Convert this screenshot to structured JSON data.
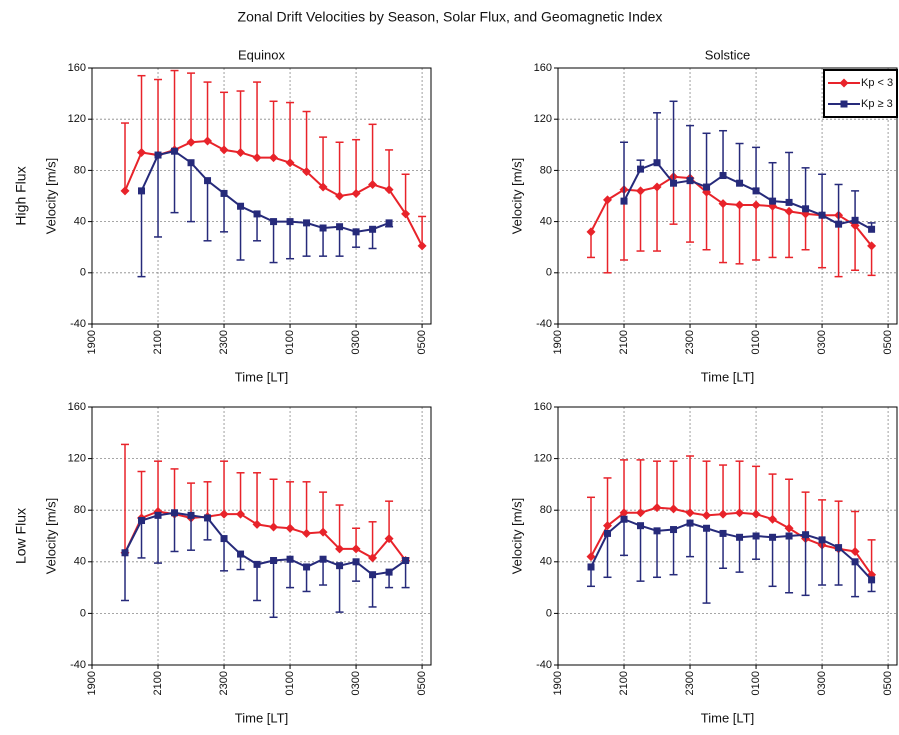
{
  "title": "Zonal Drift Velocities by Season, Solar Flux, and Geomagnetic Index",
  "row_labels": [
    "High Flux",
    "Low Flux"
  ],
  "chart_data": [
    {
      "type": "line",
      "title": "Equinox",
      "xlabel": "Time [LT]",
      "ylabel": "Velocity [m/s]",
      "xlim": [
        19,
        29.27
      ],
      "ylim": [
        -40,
        160
      ],
      "xticks": [
        {
          "value": 19,
          "label": "1900"
        },
        {
          "value": 21,
          "label": "2100"
        },
        {
          "value": 23,
          "label": "2300"
        },
        {
          "value": 25,
          "label": "0100"
        },
        {
          "value": 27,
          "label": "0300"
        },
        {
          "value": 29,
          "label": "0500"
        }
      ],
      "yticks": [
        -40,
        0,
        40,
        80,
        120,
        160
      ],
      "grid": true,
      "series": [
        {
          "color": "#e8232a",
          "marker": "diamond",
          "error_direction": "up",
          "x": [
            20,
            20.5,
            21,
            21.5,
            22,
            22.5,
            23,
            23.5,
            24,
            24.5,
            25,
            25.5,
            26,
            26.5,
            27,
            27.5,
            28,
            28.5,
            29
          ],
          "values": [
            64,
            94,
            92,
            96,
            102,
            103,
            96,
            94,
            90,
            90,
            86,
            79,
            67,
            60,
            62,
            69,
            65,
            46,
            21
          ],
          "errors": [
            53,
            60,
            59,
            62,
            54,
            46,
            45,
            48,
            59,
            44,
            47,
            47,
            39,
            42,
            42,
            47,
            31,
            31,
            23
          ]
        },
        {
          "color": "#262a7a",
          "marker": "square",
          "error_direction": "down",
          "x": [
            20.5,
            21,
            21.5,
            22,
            22.5,
            23,
            23.5,
            24,
            24.5,
            25,
            25.5,
            26,
            26.5,
            27,
            27.5,
            28
          ],
          "values": [
            64,
            92,
            95,
            86,
            72,
            62,
            52,
            46,
            40,
            40,
            39,
            35,
            36,
            32,
            34,
            39
          ],
          "errors": [
            67,
            64,
            48,
            46,
            47,
            30,
            42,
            21,
            32,
            29,
            26,
            22,
            23,
            12,
            15,
            3
          ]
        }
      ]
    },
    {
      "type": "line",
      "title": "Solstice",
      "xlabel": "Time [LT]",
      "ylabel": "Velocity [m/s]",
      "xlim": [
        19,
        29.27
      ],
      "ylim": [
        -40,
        160
      ],
      "xticks": [
        {
          "value": 19,
          "label": "1900"
        },
        {
          "value": 21,
          "label": "2100"
        },
        {
          "value": 23,
          "label": "2300"
        },
        {
          "value": 25,
          "label": "0100"
        },
        {
          "value": 27,
          "label": "0300"
        },
        {
          "value": 29,
          "label": "0500"
        }
      ],
      "yticks": [
        -40,
        0,
        40,
        80,
        120,
        160
      ],
      "grid": true,
      "legend": "upper right",
      "series": [
        {
          "name": "Kp < 3",
          "color": "#e8232a",
          "marker": "diamond",
          "error_direction": "down",
          "x": [
            20,
            20.5,
            21,
            21.5,
            22,
            22.5,
            23,
            23.5,
            24,
            24.5,
            25,
            25.5,
            26,
            26.5,
            27,
            27.5,
            28,
            28.5
          ],
          "values": [
            32,
            57,
            65,
            64,
            67,
            75,
            74,
            63,
            54,
            53,
            53,
            52,
            48,
            46,
            45,
            45,
            37,
            21
          ],
          "errors": [
            20,
            57,
            55,
            47,
            50,
            37,
            50,
            45,
            46,
            46,
            43,
            40,
            36,
            28,
            41,
            48,
            35,
            23
          ]
        },
        {
          "name": "Kp ≥ 3",
          "color": "#262a7a",
          "marker": "square",
          "error_direction": "up",
          "x": [
            21,
            21.5,
            22,
            22.5,
            23,
            23.5,
            24,
            24.5,
            25,
            25.5,
            26,
            26.5,
            27,
            27.5,
            28,
            28.5
          ],
          "values": [
            56,
            81,
            86,
            70,
            72,
            67,
            76,
            70,
            64,
            56,
            55,
            50,
            45,
            38,
            41,
            34
          ],
          "errors": [
            46,
            7,
            39,
            64,
            43,
            42,
            35,
            31,
            34,
            30,
            39,
            32,
            32,
            31,
            23,
            5
          ]
        }
      ]
    },
    {
      "type": "line",
      "xlabel": "Time [LT]",
      "ylabel": "Velocity [m/s]",
      "xlim": [
        19,
        29.27
      ],
      "ylim": [
        -40,
        160
      ],
      "xticks": [
        {
          "value": 19,
          "label": "1900"
        },
        {
          "value": 21,
          "label": "2100"
        },
        {
          "value": 23,
          "label": "2300"
        },
        {
          "value": 25,
          "label": "0100"
        },
        {
          "value": 27,
          "label": "0300"
        },
        {
          "value": 29,
          "label": "0500"
        }
      ],
      "yticks": [
        -40,
        0,
        40,
        80,
        120,
        160
      ],
      "grid": true,
      "series": [
        {
          "color": "#e8232a",
          "marker": "diamond",
          "error_direction": "up",
          "x": [
            20,
            20.5,
            21,
            21.5,
            22,
            22.5,
            23,
            23.5,
            24,
            24.5,
            25,
            25.5,
            26,
            26.5,
            27,
            27.5,
            28,
            28.5
          ],
          "values": [
            47,
            74,
            79,
            77,
            74,
            75,
            77,
            77,
            69,
            67,
            66,
            62,
            63,
            50,
            50,
            43,
            58,
            41
          ],
          "errors": [
            84,
            36,
            39,
            35,
            27,
            27,
            41,
            32,
            40,
            37,
            36,
            40,
            31,
            34,
            16,
            28,
            29,
            2
          ]
        },
        {
          "color": "#262a7a",
          "marker": "square",
          "error_direction": "down",
          "x": [
            20,
            20.5,
            21,
            21.5,
            22,
            22.5,
            23,
            23.5,
            24,
            24.5,
            25,
            25.5,
            26,
            26.5,
            27,
            27.5,
            28,
            28.5
          ],
          "values": [
            47,
            72,
            76,
            78,
            76,
            74,
            58,
            46,
            38,
            41,
            42,
            36,
            42,
            37,
            40,
            30,
            32,
            41
          ],
          "errors": [
            37,
            29,
            37,
            30,
            27,
            17,
            25,
            12,
            28,
            44,
            22,
            19,
            20,
            36,
            15,
            25,
            12,
            21
          ]
        }
      ]
    },
    {
      "type": "line",
      "xlabel": "Time [LT]",
      "ylabel": "Velocity [m/s]",
      "xlim": [
        19,
        29.27
      ],
      "ylim": [
        -40,
        160
      ],
      "xticks": [
        {
          "value": 19,
          "label": "1900"
        },
        {
          "value": 21,
          "label": "2100"
        },
        {
          "value": 23,
          "label": "2300"
        },
        {
          "value": 25,
          "label": "0100"
        },
        {
          "value": 27,
          "label": "0300"
        },
        {
          "value": 29,
          "label": "0500"
        }
      ],
      "yticks": [
        -40,
        0,
        40,
        80,
        120,
        160
      ],
      "grid": true,
      "series": [
        {
          "color": "#e8232a",
          "marker": "diamond",
          "error_direction": "up",
          "x": [
            20,
            20.5,
            21,
            21.5,
            22,
            22.5,
            23,
            23.5,
            24,
            24.5,
            25,
            25.5,
            26,
            26.5,
            27,
            27.5,
            28,
            28.5
          ],
          "values": [
            44,
            68,
            78,
            78,
            82,
            81,
            78,
            76,
            77,
            78,
            77,
            73,
            66,
            58,
            53,
            50,
            48,
            30
          ],
          "errors": [
            46,
            37,
            41,
            41,
            36,
            37,
            44,
            42,
            38,
            40,
            37,
            35,
            38,
            36,
            35,
            37,
            31,
            27
          ]
        },
        {
          "color": "#262a7a",
          "marker": "square",
          "error_direction": "down",
          "x": [
            20,
            20.5,
            21,
            21.5,
            22,
            22.5,
            23,
            23.5,
            24,
            24.5,
            25,
            25.5,
            26,
            26.5,
            27,
            27.5,
            28,
            28.5
          ],
          "values": [
            36,
            62,
            73,
            68,
            64,
            65,
            70,
            66,
            62,
            59,
            60,
            59,
            60,
            61,
            57,
            51,
            40,
            26
          ],
          "errors": [
            15,
            34,
            28,
            43,
            36,
            35,
            26,
            58,
            27,
            27,
            18,
            38,
            44,
            47,
            35,
            29,
            27,
            9
          ]
        }
      ]
    }
  ]
}
